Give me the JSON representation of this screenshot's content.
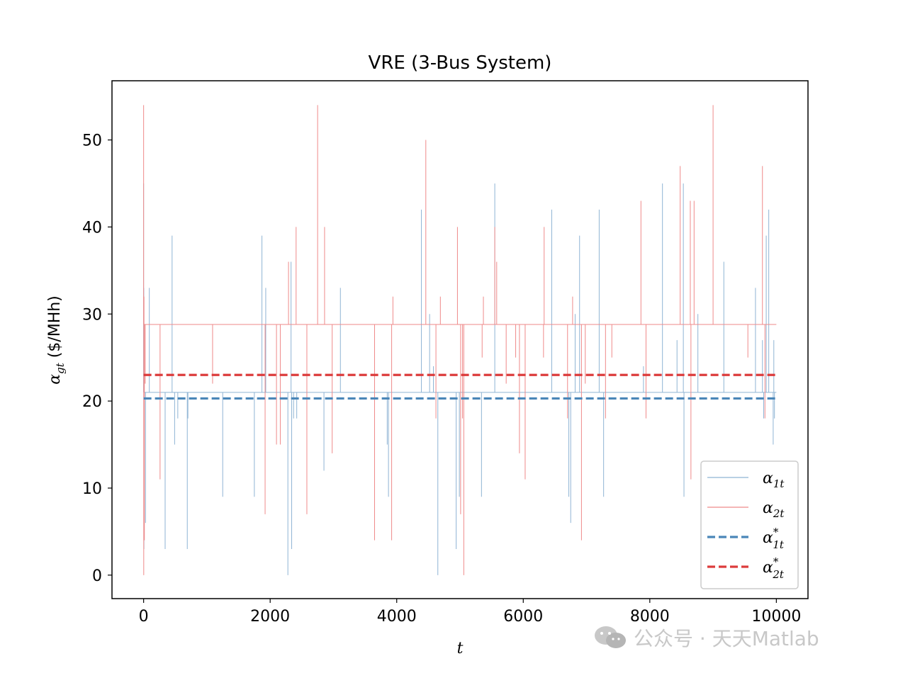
{
  "chart_data": {
    "type": "line",
    "title": "VRE (3-Bus System)",
    "xlabel": "t",
    "ylabel": {
      "symbol": "α",
      "subscript": "gt",
      "unit": " ($/MHh)"
    },
    "xlim": [
      -500,
      10500
    ],
    "ylim": [
      -2.7,
      56.8
    ],
    "xticks": [
      0,
      2000,
      4000,
      6000,
      8000,
      10000
    ],
    "yticks": [
      0,
      10,
      20,
      30,
      40,
      50
    ],
    "grid": false,
    "legend_position": "lower-right",
    "legend": [
      {
        "id": "a1",
        "symbol": "α",
        "subscript": "1t",
        "superscript": "",
        "color": "#8fb4d4",
        "style": "solid"
      },
      {
        "id": "a2",
        "symbol": "α",
        "subscript": "2t",
        "superscript": "",
        "color": "#ef8a8a",
        "style": "solid"
      },
      {
        "id": "a1s",
        "symbol": "α",
        "subscript": "1t",
        "superscript": "*",
        "color": "#4a86b8",
        "style": "dashed"
      },
      {
        "id": "a2s",
        "symbol": "α",
        "subscript": "2t",
        "superscript": "*",
        "color": "#dc3c3c",
        "style": "dashed"
      }
    ],
    "series": [
      {
        "id": "alpha1",
        "color": "#8fb4d4",
        "baseline": 21,
        "x_range": [
          0,
          10000
        ],
        "spikes": [
          [
            0,
            45
          ],
          [
            2,
            33
          ],
          [
            5,
            3
          ],
          [
            10,
            8
          ],
          [
            30,
            6
          ],
          [
            90,
            33
          ],
          [
            340,
            3
          ],
          [
            450,
            39
          ],
          [
            490,
            15
          ],
          [
            540,
            18
          ],
          [
            690,
            3
          ],
          [
            700,
            18
          ],
          [
            1250,
            9
          ],
          [
            1750,
            9
          ],
          [
            1870,
            39
          ],
          [
            1930,
            33
          ],
          [
            2280,
            0
          ],
          [
            2330,
            36
          ],
          [
            2340,
            3
          ],
          [
            2370,
            18
          ],
          [
            2420,
            18
          ],
          [
            2850,
            12
          ],
          [
            3110,
            33
          ],
          [
            3850,
            15
          ],
          [
            3870,
            9
          ],
          [
            4390,
            42
          ],
          [
            4520,
            30
          ],
          [
            4580,
            24
          ],
          [
            4650,
            0
          ],
          [
            4940,
            3
          ],
          [
            4990,
            9
          ],
          [
            5340,
            9
          ],
          [
            5550,
            45
          ],
          [
            6450,
            42
          ],
          [
            6720,
            9
          ],
          [
            6750,
            6
          ],
          [
            6820,
            30
          ],
          [
            6890,
            39
          ],
          [
            7200,
            42
          ],
          [
            7270,
            9
          ],
          [
            7900,
            24
          ],
          [
            8200,
            45
          ],
          [
            8430,
            27
          ],
          [
            8530,
            45
          ],
          [
            8540,
            9
          ],
          [
            8760,
            30
          ],
          [
            9170,
            36
          ],
          [
            9670,
            33
          ],
          [
            9780,
            27
          ],
          [
            9800,
            18
          ],
          [
            9840,
            39
          ],
          [
            9880,
            42
          ],
          [
            9950,
            15
          ],
          [
            9960,
            27
          ],
          [
            9970,
            18
          ]
        ]
      },
      {
        "id": "alpha2",
        "color": "#ef8a8a",
        "baseline": 28.8,
        "x_range": [
          0,
          10000
        ],
        "spikes": [
          [
            0,
            54
          ],
          [
            2,
            0
          ],
          [
            6,
            32
          ],
          [
            12,
            4
          ],
          [
            25,
            22
          ],
          [
            260,
            11
          ],
          [
            1090,
            22
          ],
          [
            1920,
            7
          ],
          [
            2100,
            15
          ],
          [
            2160,
            15
          ],
          [
            2290,
            36
          ],
          [
            2410,
            40
          ],
          [
            2580,
            7
          ],
          [
            2750,
            54
          ],
          [
            2860,
            40
          ],
          [
            2980,
            14
          ],
          [
            3650,
            4
          ],
          [
            3920,
            4
          ],
          [
            3940,
            32
          ],
          [
            4460,
            50
          ],
          [
            4620,
            18
          ],
          [
            4690,
            32
          ],
          [
            4960,
            40
          ],
          [
            5010,
            7
          ],
          [
            5040,
            18
          ],
          [
            5060,
            0
          ],
          [
            5350,
            25
          ],
          [
            5370,
            32
          ],
          [
            5550,
            40
          ],
          [
            5580,
            36
          ],
          [
            5730,
            22
          ],
          [
            5880,
            25
          ],
          [
            5940,
            14
          ],
          [
            6030,
            11
          ],
          [
            6320,
            25
          ],
          [
            6330,
            40
          ],
          [
            6700,
            18
          ],
          [
            6780,
            32
          ],
          [
            6920,
            4
          ],
          [
            6980,
            22
          ],
          [
            7300,
            18
          ],
          [
            7400,
            25
          ],
          [
            7860,
            43
          ],
          [
            7940,
            18
          ],
          [
            8480,
            47
          ],
          [
            8640,
            43
          ],
          [
            8650,
            11
          ],
          [
            8700,
            43
          ],
          [
            9000,
            54
          ],
          [
            9550,
            25
          ],
          [
            9780,
            47
          ],
          [
            9820,
            18
          ]
        ]
      }
    ],
    "means": [
      {
        "id": "alpha1_star",
        "value": 20.3,
        "color": "#4a86b8",
        "x_range": [
          0,
          10000
        ]
      },
      {
        "id": "alpha2_star",
        "value": 23.0,
        "color": "#dc3c3c",
        "x_range": [
          0,
          10000
        ]
      }
    ]
  },
  "watermark": {
    "text": "公众号 · 天天Matlab",
    "icon": "wechat-icon"
  }
}
